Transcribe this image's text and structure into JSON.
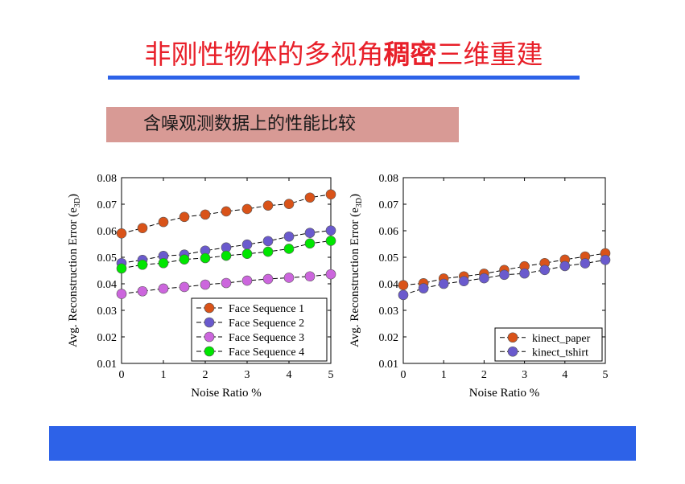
{
  "page": {
    "title_pre": "非刚性物体的多视角",
    "title_bold": "稠密",
    "title_post": "三维重建",
    "subtitle": "含噪观测数据上的性能比较",
    "accent_color": "#2d62e8",
    "title_color": "#e8202a"
  },
  "chart_data": [
    {
      "type": "line",
      "title": "",
      "xlabel": "Noise Ratio %",
      "ylabel": "Avg. Reconstruction Error (e",
      "ylabel_sub": "3D",
      "ylabel_close": ")",
      "x": [
        0,
        0.5,
        1,
        1.5,
        2,
        2.5,
        3,
        3.5,
        4,
        4.5,
        5
      ],
      "xlim": [
        0,
        5
      ],
      "ylim": [
        0.01,
        0.08
      ],
      "xticks": [
        "0",
        "1",
        "2",
        "3",
        "4",
        "5"
      ],
      "yticks": [
        "0.01",
        "0.02",
        "0.03",
        "0.04",
        "0.05",
        "0.06",
        "0.07",
        "0.08"
      ],
      "legend_position": "bottom-right",
      "series": [
        {
          "name": "Face Sequence 1",
          "color": "#d95319",
          "values": [
            0.059,
            0.061,
            0.0633,
            0.0652,
            0.0661,
            0.0673,
            0.0682,
            0.0695,
            0.0701,
            0.0725,
            0.0737
          ]
        },
        {
          "name": "Face Sequence 2",
          "color": "#6a5acd",
          "values": [
            0.0478,
            0.049,
            0.0505,
            0.051,
            0.0525,
            0.0537,
            0.0548,
            0.0561,
            0.0578,
            0.0592,
            0.0601
          ]
        },
        {
          "name": "Face Sequence 3",
          "color": "#cc66dd",
          "values": [
            0.0362,
            0.0372,
            0.0382,
            0.0388,
            0.0397,
            0.0403,
            0.0412,
            0.0418,
            0.0423,
            0.0428,
            0.0436
          ]
        },
        {
          "name": "Face Sequence 4",
          "color": "#00e600",
          "values": [
            0.0458,
            0.0472,
            0.0478,
            0.0492,
            0.0497,
            0.0506,
            0.0513,
            0.0521,
            0.0532,
            0.0552,
            0.0562
          ]
        }
      ]
    },
    {
      "type": "line",
      "title": "",
      "xlabel": "Noise Ratio %",
      "ylabel": "Avg. Reconstruction Error (e",
      "ylabel_sub": "3D",
      "ylabel_close": ")",
      "x": [
        0,
        0.5,
        1,
        1.5,
        2,
        2.5,
        3,
        3.5,
        4,
        4.5,
        5
      ],
      "xlim": [
        0,
        5
      ],
      "ylim": [
        0.01,
        0.08
      ],
      "xticks": [
        "0",
        "1",
        "2",
        "3",
        "4",
        "5"
      ],
      "yticks": [
        "0.01",
        "0.02",
        "0.03",
        "0.04",
        "0.05",
        "0.06",
        "0.07",
        "0.08"
      ],
      "legend_position": "bottom-right",
      "series": [
        {
          "name": "kinect_paper",
          "color": "#d95319",
          "values": [
            0.0395,
            0.0402,
            0.042,
            0.0428,
            0.0438,
            0.0452,
            0.0466,
            0.0478,
            0.0491,
            0.0503,
            0.0515
          ]
        },
        {
          "name": "kinect_tshirt",
          "color": "#6a5acd",
          "values": [
            0.0358,
            0.0383,
            0.04,
            0.041,
            0.0421,
            0.0434,
            0.0439,
            0.0452,
            0.0467,
            0.0477,
            0.049
          ]
        }
      ]
    }
  ]
}
